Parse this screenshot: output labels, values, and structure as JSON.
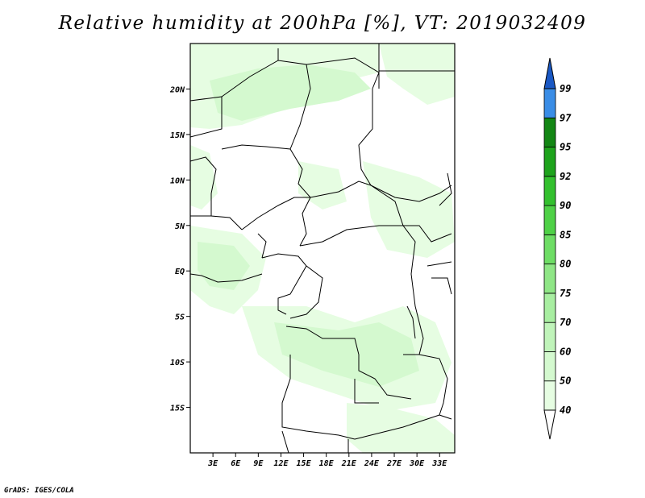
{
  "title": "Relative humidity at 200hPa [%], VT: 2019032409",
  "credit": "GrADS: IGES/COLA",
  "map": {
    "lon_range": [
      0,
      35
    ],
    "lat_range": [
      -20,
      25
    ],
    "lat_ticks": [
      {
        "value": 20,
        "label": "20N"
      },
      {
        "value": 15,
        "label": "15N"
      },
      {
        "value": 10,
        "label": "10N"
      },
      {
        "value": 5,
        "label": "5N"
      },
      {
        "value": 0,
        "label": "EQ"
      },
      {
        "value": -5,
        "label": "5S"
      },
      {
        "value": -10,
        "label": "10S"
      },
      {
        "value": -15,
        "label": "15S"
      }
    ],
    "lon_ticks": [
      {
        "value": 3,
        "label": "3E"
      },
      {
        "value": 6,
        "label": "6E"
      },
      {
        "value": 9,
        "label": "9E"
      },
      {
        "value": 12,
        "label": "12E"
      },
      {
        "value": 15,
        "label": "15E"
      },
      {
        "value": 18,
        "label": "18E"
      },
      {
        "value": 21,
        "label": "21E"
      },
      {
        "value": 24,
        "label": "24E"
      },
      {
        "value": 27,
        "label": "27E"
      },
      {
        "value": 30,
        "label": "30E"
      },
      {
        "value": 33,
        "label": "33E"
      }
    ]
  },
  "colorbar": {
    "levels": [
      "40",
      "50",
      "60",
      "70",
      "75",
      "80",
      "85",
      "90",
      "92",
      "95",
      "97",
      "99"
    ],
    "colors": [
      "#ffffff",
      "#e6fde2",
      "#d4f9cf",
      "#c0f4ba",
      "#a8eea1",
      "#8fe686",
      "#6edd65",
      "#4fd147",
      "#33c02e",
      "#1ea31c",
      "#138614",
      "#3a8de6",
      "#2470d8",
      "#1a58c4"
    ],
    "outline": "#000000"
  },
  "shading_color_light": "#e6fde2",
  "shading_color_mid": "#d4f9cf"
}
